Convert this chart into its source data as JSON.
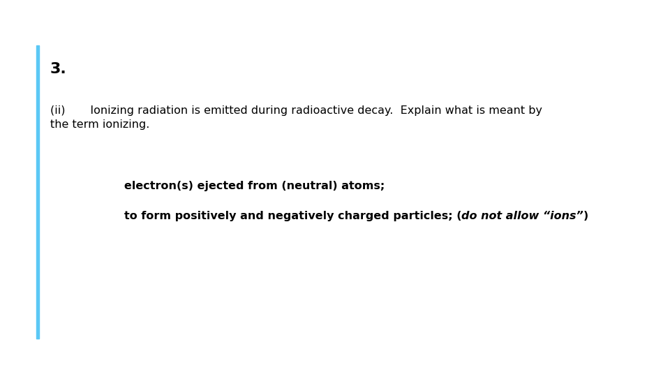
{
  "background_color": "#ffffff",
  "left_bar_color": "#5bc8f5",
  "number_text": "3.",
  "number_fontsize": 16,
  "number_fontweight": "bold",
  "question_text": "(ii)       Ionizing radiation is emitted during radioactive decay.  Explain what is meant by\nthe term ionizing.",
  "question_fontsize": 11.5,
  "question_fontweight": "normal",
  "answer_line1": "electron(s) ejected from (neutral) atoms;",
  "answer_line2_normal": "to form positively and negatively charged particles; (",
  "answer_line2_italic": "do not allow “ions”",
  "answer_line2_end": ")",
  "answer_fontsize": 11.5,
  "answer_fontweight": "bold"
}
